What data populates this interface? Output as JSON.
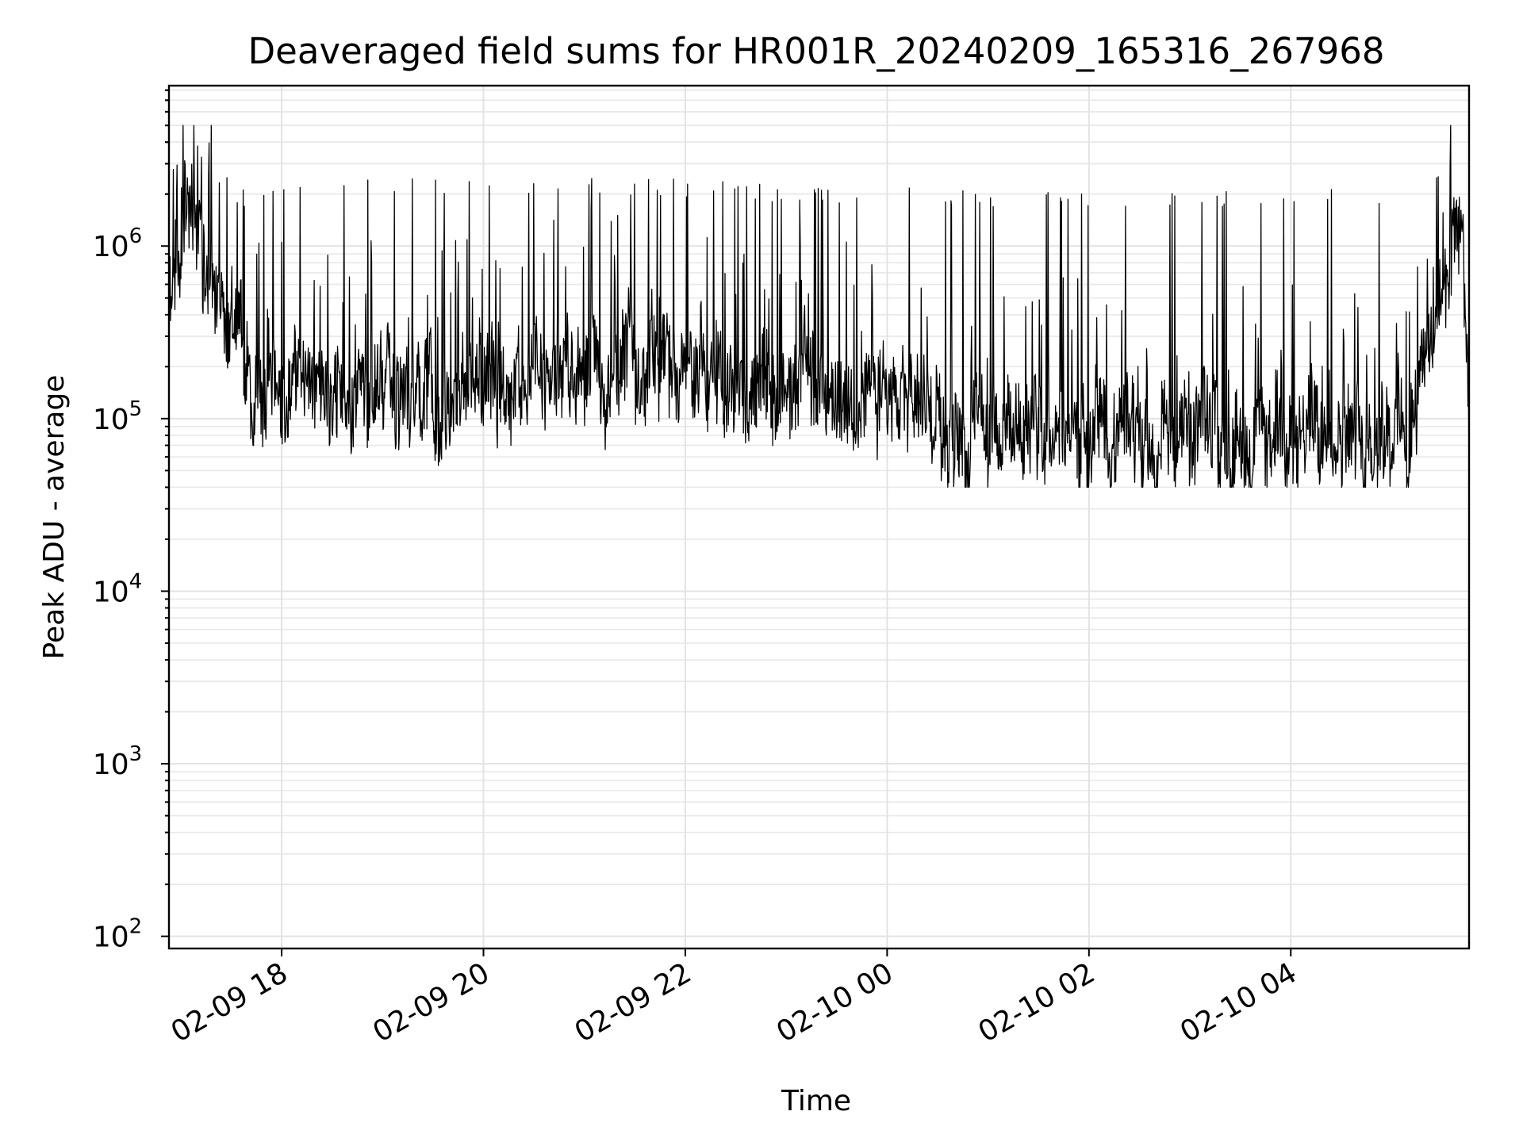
{
  "chart_data": {
    "type": "line",
    "title": "Deaveraged field sums for HR001R_20240209_165316_267968",
    "xlabel": "Time",
    "ylabel": "Peak ADU - average",
    "yscale": "log",
    "ylim": [
      85,
      8500000
    ],
    "xlim": [
      "2024-02-09 16:53",
      "2024-02-10 05:46"
    ],
    "grid": true,
    "line_color": "#000000",
    "x_ticks": [
      {
        "t": "2024-02-09 18:00",
        "label": "02-09 18"
      },
      {
        "t": "2024-02-09 20:00",
        "label": "02-09 20"
      },
      {
        "t": "2024-02-09 22:00",
        "label": "02-09 22"
      },
      {
        "t": "2024-02-10 00:00",
        "label": "02-10 00"
      },
      {
        "t": "2024-02-10 02:00",
        "label": "02-10 02"
      },
      {
        "t": "2024-02-10 04:00",
        "label": "02-10 04"
      }
    ],
    "y_ticks": [
      {
        "value": 100,
        "base": "10",
        "exp": "2"
      },
      {
        "value": 1000,
        "base": "10",
        "exp": "3"
      },
      {
        "value": 10000,
        "base": "10",
        "exp": "4"
      },
      {
        "value": 100000,
        "base": "10",
        "exp": "5"
      },
      {
        "value": 1000000,
        "base": "10",
        "exp": "6"
      }
    ],
    "trend": [
      {
        "t": "2024-02-09 16:53",
        "baseline": 600000,
        "spike": 1500000
      },
      {
        "t": "2024-02-09 17:05",
        "baseline": 1500000,
        "spike": 3500000
      },
      {
        "t": "2024-02-09 17:15",
        "baseline": 900000,
        "spike": 4500000
      },
      {
        "t": "2024-02-09 17:25",
        "baseline": 450000,
        "spike": 3000000
      },
      {
        "t": "2024-02-09 17:40",
        "baseline": 200000,
        "spike": 2000000
      },
      {
        "t": "2024-02-09 18:00",
        "baseline": 160000,
        "spike": 2500000
      },
      {
        "t": "2024-02-09 19:00",
        "baseline": 140000,
        "spike": 2500000
      },
      {
        "t": "2024-02-09 20:00",
        "baseline": 150000,
        "spike": 2500000
      },
      {
        "t": "2024-02-09 21:00",
        "baseline": 220000,
        "spike": 2500000
      },
      {
        "t": "2024-02-09 22:00",
        "baseline": 200000,
        "spike": 2500000
      },
      {
        "t": "2024-02-09 23:00",
        "baseline": 150000,
        "spike": 2300000
      },
      {
        "t": "2024-02-10 00:00",
        "baseline": 130000,
        "spike": 2200000
      },
      {
        "t": "2024-02-10 00:40",
        "baseline": 80000,
        "spike": 2200000
      },
      {
        "t": "2024-02-10 02:00",
        "baseline": 85000,
        "spike": 2200000
      },
      {
        "t": "2024-02-10 03:00",
        "baseline": 82000,
        "spike": 2200000
      },
      {
        "t": "2024-02-10 05:10",
        "baseline": 85000,
        "spike": 2200000
      },
      {
        "t": "2024-02-10 05:20",
        "baseline": 200000,
        "spike": 500000
      },
      {
        "t": "2024-02-10 05:30",
        "baseline": 700000,
        "spike": 1200000
      },
      {
        "t": "2024-02-10 05:42",
        "baseline": 1200000,
        "spike": 1700000
      },
      {
        "t": "2024-02-10 05:46",
        "baseline": 150000,
        "spike": 300000
      }
    ],
    "min_value": 40000,
    "max_value": 5000000
  }
}
